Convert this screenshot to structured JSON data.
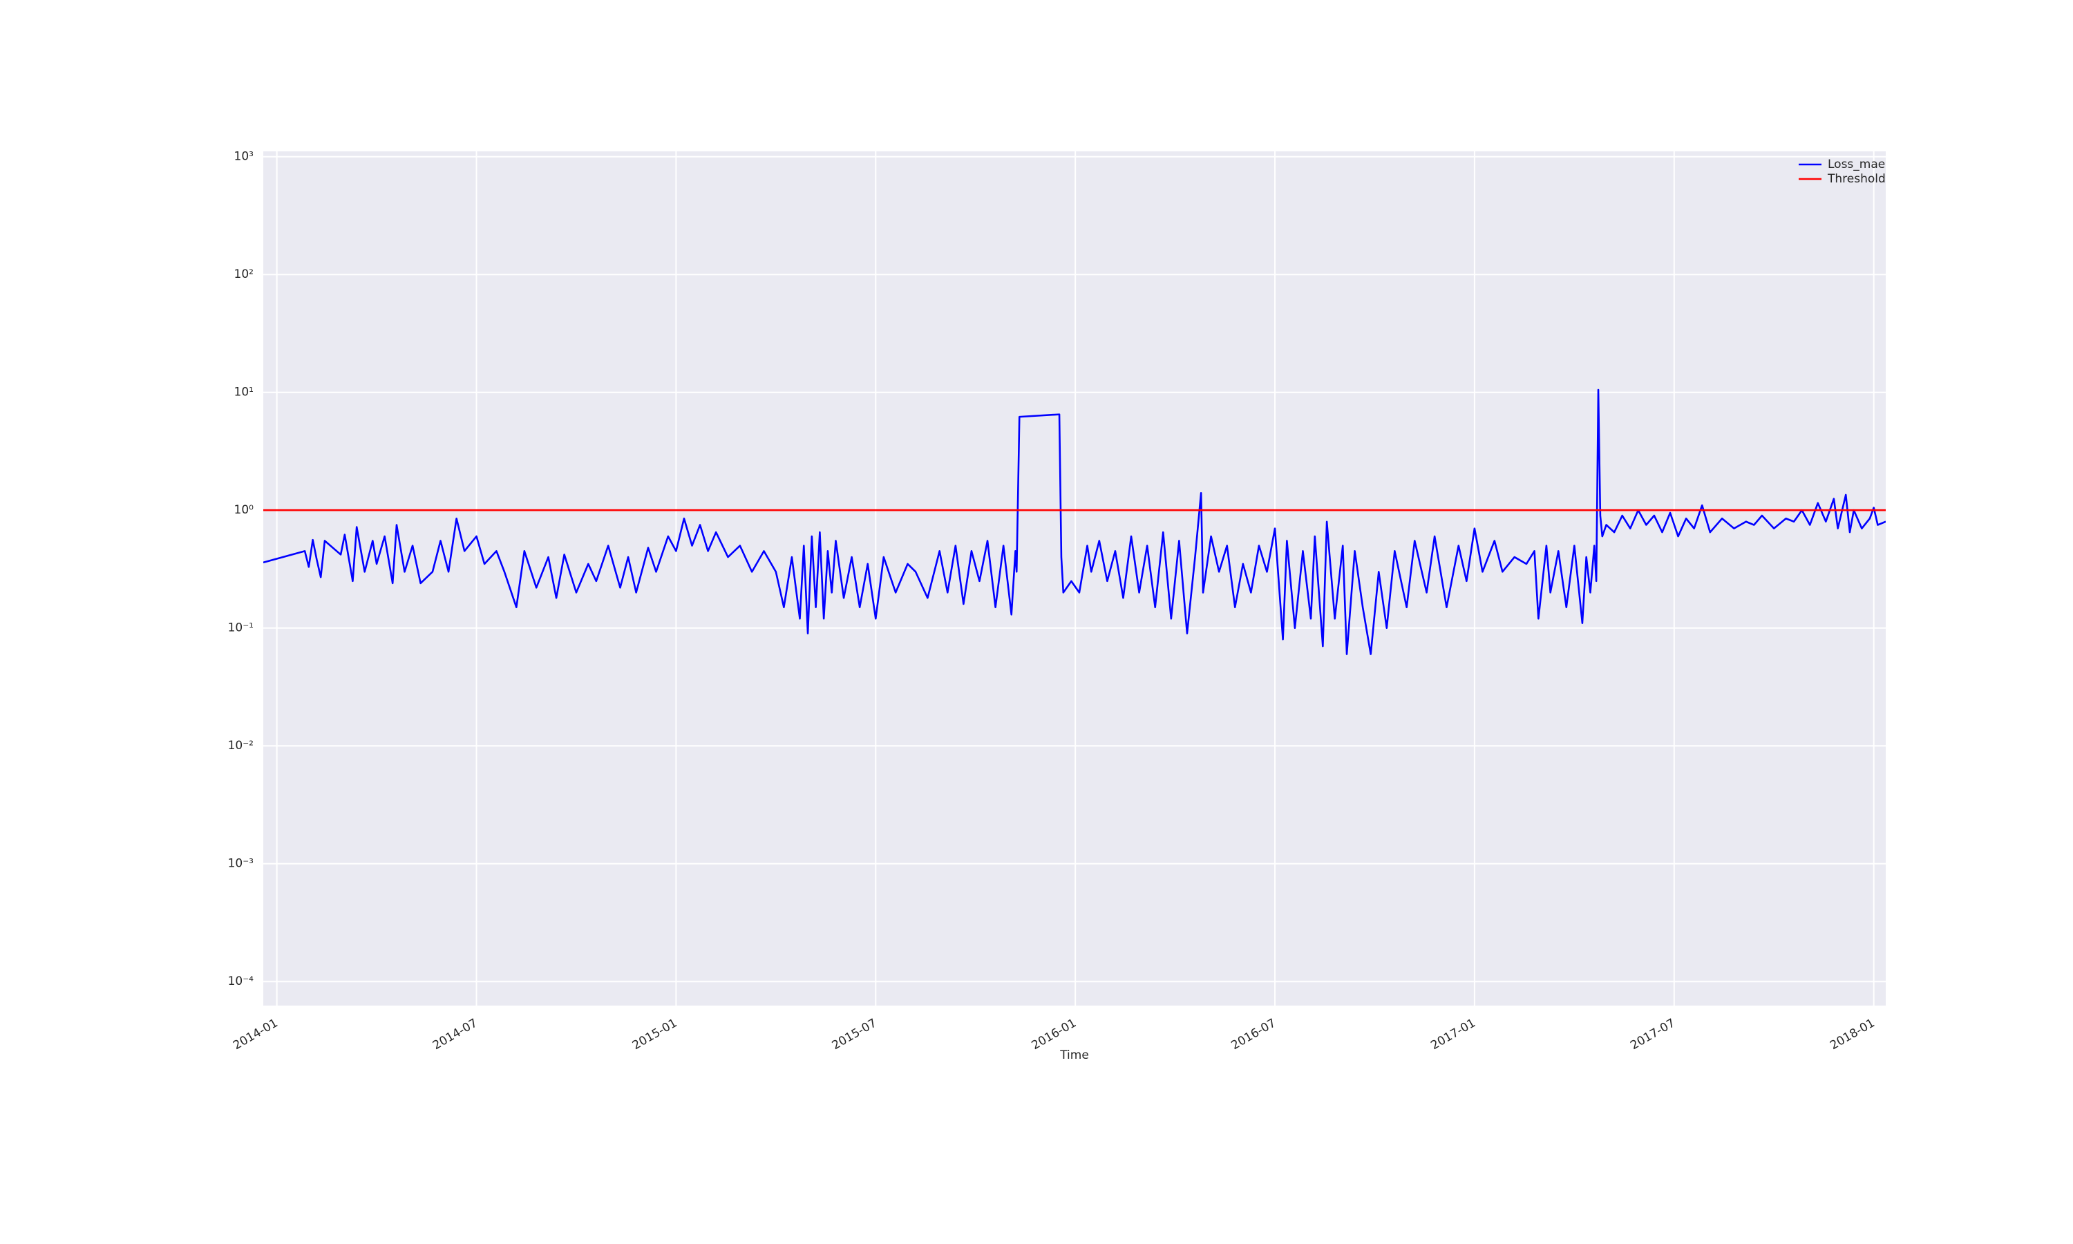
{
  "chart_data": {
    "type": "line",
    "xlabel": "Time",
    "yscale": "log",
    "grid": true,
    "legend": "upper right",
    "xlim": [
      2013.966,
      2018.03
    ],
    "ylim": [
      6.25e-05,
      1110
    ],
    "xticks": [
      {
        "value": 2014.0,
        "label": "2014-01"
      },
      {
        "value": 2014.5,
        "label": "2014-07"
      },
      {
        "value": 2015.0,
        "label": "2015-01"
      },
      {
        "value": 2015.5,
        "label": "2015-07"
      },
      {
        "value": 2016.0,
        "label": "2016-01"
      },
      {
        "value": 2016.5,
        "label": "2016-07"
      },
      {
        "value": 2017.0,
        "label": "2017-01"
      },
      {
        "value": 2017.5,
        "label": "2017-07"
      },
      {
        "value": 2018.0,
        "label": "2018-01"
      }
    ],
    "yticks": [
      {
        "value": 0.0001,
        "label": "10⁻⁴"
      },
      {
        "value": 0.001,
        "label": "10⁻³"
      },
      {
        "value": 0.01,
        "label": "10⁻²"
      },
      {
        "value": 0.1,
        "label": "10⁻¹"
      },
      {
        "value": 1,
        "label": "10⁰"
      },
      {
        "value": 10,
        "label": "10¹"
      },
      {
        "value": 100,
        "label": "10²"
      },
      {
        "value": 1000,
        "label": "10³"
      }
    ],
    "series": [
      {
        "name": "Loss_mae",
        "color": "#0000ff",
        "x": [
          2013.966,
          2014.07,
          2014.08,
          2014.09,
          2014.1,
          2014.11,
          2014.12,
          2014.16,
          2014.17,
          2014.19,
          2014.2,
          2014.22,
          2014.24,
          2014.25,
          2014.27,
          2014.29,
          2014.3,
          2014.32,
          2014.34,
          2014.36,
          2014.39,
          2014.41,
          2014.43,
          2014.45,
          2014.47,
          2014.5,
          2014.52,
          2014.55,
          2014.57,
          2014.6,
          2014.62,
          2014.65,
          2014.68,
          2014.7,
          2014.72,
          2014.75,
          2014.78,
          2014.8,
          2014.83,
          2014.86,
          2014.88,
          2014.9,
          2014.93,
          2014.95,
          2014.98,
          2015.0,
          2015.02,
          2015.04,
          2015.06,
          2015.08,
          2015.1,
          2015.13,
          2015.16,
          2015.19,
          2015.22,
          2015.25,
          2015.27,
          2015.29,
          2015.31,
          2015.32,
          2015.33,
          2015.34,
          2015.35,
          2015.36,
          2015.37,
          2015.38,
          2015.39,
          2015.4,
          2015.42,
          2015.44,
          2015.46,
          2015.48,
          2015.5,
          2015.52,
          2015.55,
          2015.58,
          2015.6,
          2015.63,
          2015.66,
          2015.68,
          2015.7,
          2015.72,
          2015.74,
          2015.76,
          2015.78,
          2015.8,
          2015.82,
          2015.84,
          2015.85,
          2015.853,
          2015.86,
          2015.96,
          2015.965,
          2015.97,
          2015.99,
          2016.01,
          2016.03,
          2016.04,
          2016.06,
          2016.08,
          2016.1,
          2016.12,
          2016.14,
          2016.16,
          2016.18,
          2016.2,
          2016.22,
          2016.24,
          2016.26,
          2016.28,
          2016.3,
          2016.315,
          2016.32,
          2016.34,
          2016.36,
          2016.38,
          2016.4,
          2016.42,
          2016.44,
          2016.46,
          2016.48,
          2016.5,
          2016.52,
          2016.53,
          2016.55,
          2016.57,
          2016.59,
          2016.6,
          2016.62,
          2016.63,
          2016.65,
          2016.67,
          2016.68,
          2016.7,
          2016.72,
          2016.74,
          2016.76,
          2016.78,
          2016.8,
          2016.83,
          2016.85,
          2016.88,
          2016.9,
          2016.93,
          2016.96,
          2016.98,
          2017.0,
          2017.02,
          2017.05,
          2017.07,
          2017.1,
          2017.13,
          2017.15,
          2017.16,
          2017.18,
          2017.19,
          2017.21,
          2017.23,
          2017.25,
          2017.27,
          2017.28,
          2017.29,
          2017.3,
          2017.305,
          2017.31,
          2017.315,
          2017.32,
          2017.33,
          2017.35,
          2017.37,
          2017.39,
          2017.41,
          2017.43,
          2017.45,
          2017.47,
          2017.49,
          2017.51,
          2017.53,
          2017.55,
          2017.57,
          2017.59,
          2017.62,
          2017.65,
          2017.68,
          2017.7,
          2017.72,
          2017.75,
          2017.78,
          2017.8,
          2017.82,
          2017.84,
          2017.86,
          2017.88,
          2017.9,
          2017.91,
          2017.93,
          2017.94,
          2017.95,
          2017.97,
          2017.99,
          2018.0,
          2018.01,
          2018.03
        ],
        "values": [
          0.36,
          0.45,
          0.33,
          0.56,
          0.38,
          0.27,
          0.55,
          0.42,
          0.62,
          0.25,
          0.72,
          0.3,
          0.55,
          0.35,
          0.6,
          0.24,
          0.75,
          0.3,
          0.5,
          0.24,
          0.3,
          0.55,
          0.3,
          0.85,
          0.45,
          0.6,
          0.35,
          0.45,
          0.3,
          0.15,
          0.45,
          0.22,
          0.4,
          0.18,
          0.42,
          0.2,
          0.35,
          0.25,
          0.5,
          0.22,
          0.4,
          0.2,
          0.48,
          0.3,
          0.6,
          0.45,
          0.85,
          0.5,
          0.75,
          0.45,
          0.65,
          0.4,
          0.5,
          0.3,
          0.45,
          0.3,
          0.15,
          0.4,
          0.12,
          0.5,
          0.09,
          0.6,
          0.15,
          0.65,
          0.12,
          0.45,
          0.2,
          0.55,
          0.18,
          0.4,
          0.15,
          0.35,
          0.12,
          0.4,
          0.2,
          0.35,
          0.3,
          0.18,
          0.45,
          0.2,
          0.5,
          0.16,
          0.45,
          0.25,
          0.55,
          0.15,
          0.5,
          0.13,
          0.45,
          0.3,
          6.2,
          6.5,
          0.4,
          0.2,
          0.25,
          0.2,
          0.5,
          0.3,
          0.55,
          0.25,
          0.45,
          0.18,
          0.6,
          0.2,
          0.5,
          0.15,
          0.65,
          0.12,
          0.55,
          0.09,
          0.4,
          1.4,
          0.2,
          0.6,
          0.3,
          0.5,
          0.15,
          0.35,
          0.2,
          0.5,
          0.3,
          0.7,
          0.08,
          0.55,
          0.1,
          0.45,
          0.12,
          0.6,
          0.07,
          0.8,
          0.12,
          0.5,
          0.06,
          0.45,
          0.15,
          0.06,
          0.3,
          0.1,
          0.45,
          0.15,
          0.55,
          0.2,
          0.6,
          0.15,
          0.5,
          0.25,
          0.7,
          0.3,
          0.55,
          0.3,
          0.4,
          0.35,
          0.45,
          0.12,
          0.5,
          0.2,
          0.45,
          0.15,
          0.5,
          0.11,
          0.4,
          0.2,
          0.5,
          0.25,
          10.5,
          0.9,
          0.6,
          0.75,
          0.65,
          0.9,
          0.7,
          1.0,
          0.75,
          0.9,
          0.65,
          0.95,
          0.6,
          0.85,
          0.7,
          1.1,
          0.65,
          0.85,
          0.7,
          0.8,
          0.75,
          0.9,
          0.7,
          0.85,
          0.8,
          1.0,
          0.75,
          1.15,
          0.8,
          1.25,
          0.7,
          1.35,
          0.65,
          1.0,
          0.7,
          0.85,
          1.05,
          0.75,
          0.8
        ]
      },
      {
        "name": "Threshold",
        "color": "#ff0000",
        "x": [
          2013.966,
          2018.03
        ],
        "values": [
          1,
          1
        ]
      }
    ]
  }
}
